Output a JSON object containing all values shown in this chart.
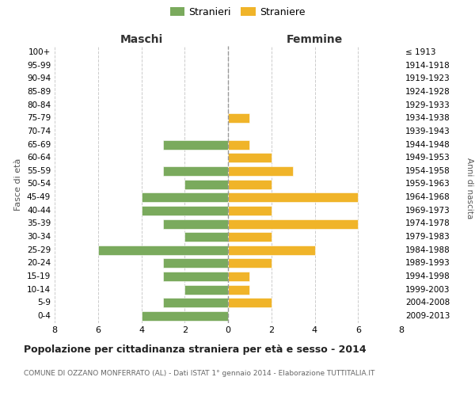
{
  "age_groups": [
    "100+",
    "95-99",
    "90-94",
    "85-89",
    "80-84",
    "75-79",
    "70-74",
    "65-69",
    "60-64",
    "55-59",
    "50-54",
    "45-49",
    "40-44",
    "35-39",
    "30-34",
    "25-29",
    "20-24",
    "15-19",
    "10-14",
    "5-9",
    "0-4"
  ],
  "birth_years": [
    "≤ 1913",
    "1914-1918",
    "1919-1923",
    "1924-1928",
    "1929-1933",
    "1934-1938",
    "1939-1943",
    "1944-1948",
    "1949-1953",
    "1954-1958",
    "1959-1963",
    "1964-1968",
    "1969-1973",
    "1974-1978",
    "1979-1983",
    "1984-1988",
    "1989-1993",
    "1994-1998",
    "1999-2003",
    "2004-2008",
    "2009-2013"
  ],
  "maschi": [
    0,
    0,
    0,
    0,
    0,
    0,
    0,
    3,
    0,
    3,
    2,
    4,
    4,
    3,
    2,
    6,
    3,
    3,
    2,
    3,
    4
  ],
  "femmine": [
    0,
    0,
    0,
    0,
    0,
    1,
    0,
    1,
    2,
    3,
    2,
    6,
    2,
    6,
    2,
    4,
    2,
    1,
    1,
    2,
    0
  ],
  "color_maschi": "#7aaa5d",
  "color_femmine": "#f0b429",
  "title_main": "Popolazione per cittadinanza straniera per età e sesso - 2014",
  "title_sub": "COMUNE DI OZZANO MONFERRATO (AL) - Dati ISTAT 1° gennaio 2014 - Elaborazione TUTTITALIA.IT",
  "label_maschi": "Maschi",
  "label_femmine": "Femmine",
  "legend_stranieri": "Stranieri",
  "legend_straniere": "Straniere",
  "ylabel": "Fasce di età",
  "ylabel2": "Anni di nascita",
  "xlim": 8,
  "background_color": "#ffffff",
  "grid_color": "#cccccc"
}
